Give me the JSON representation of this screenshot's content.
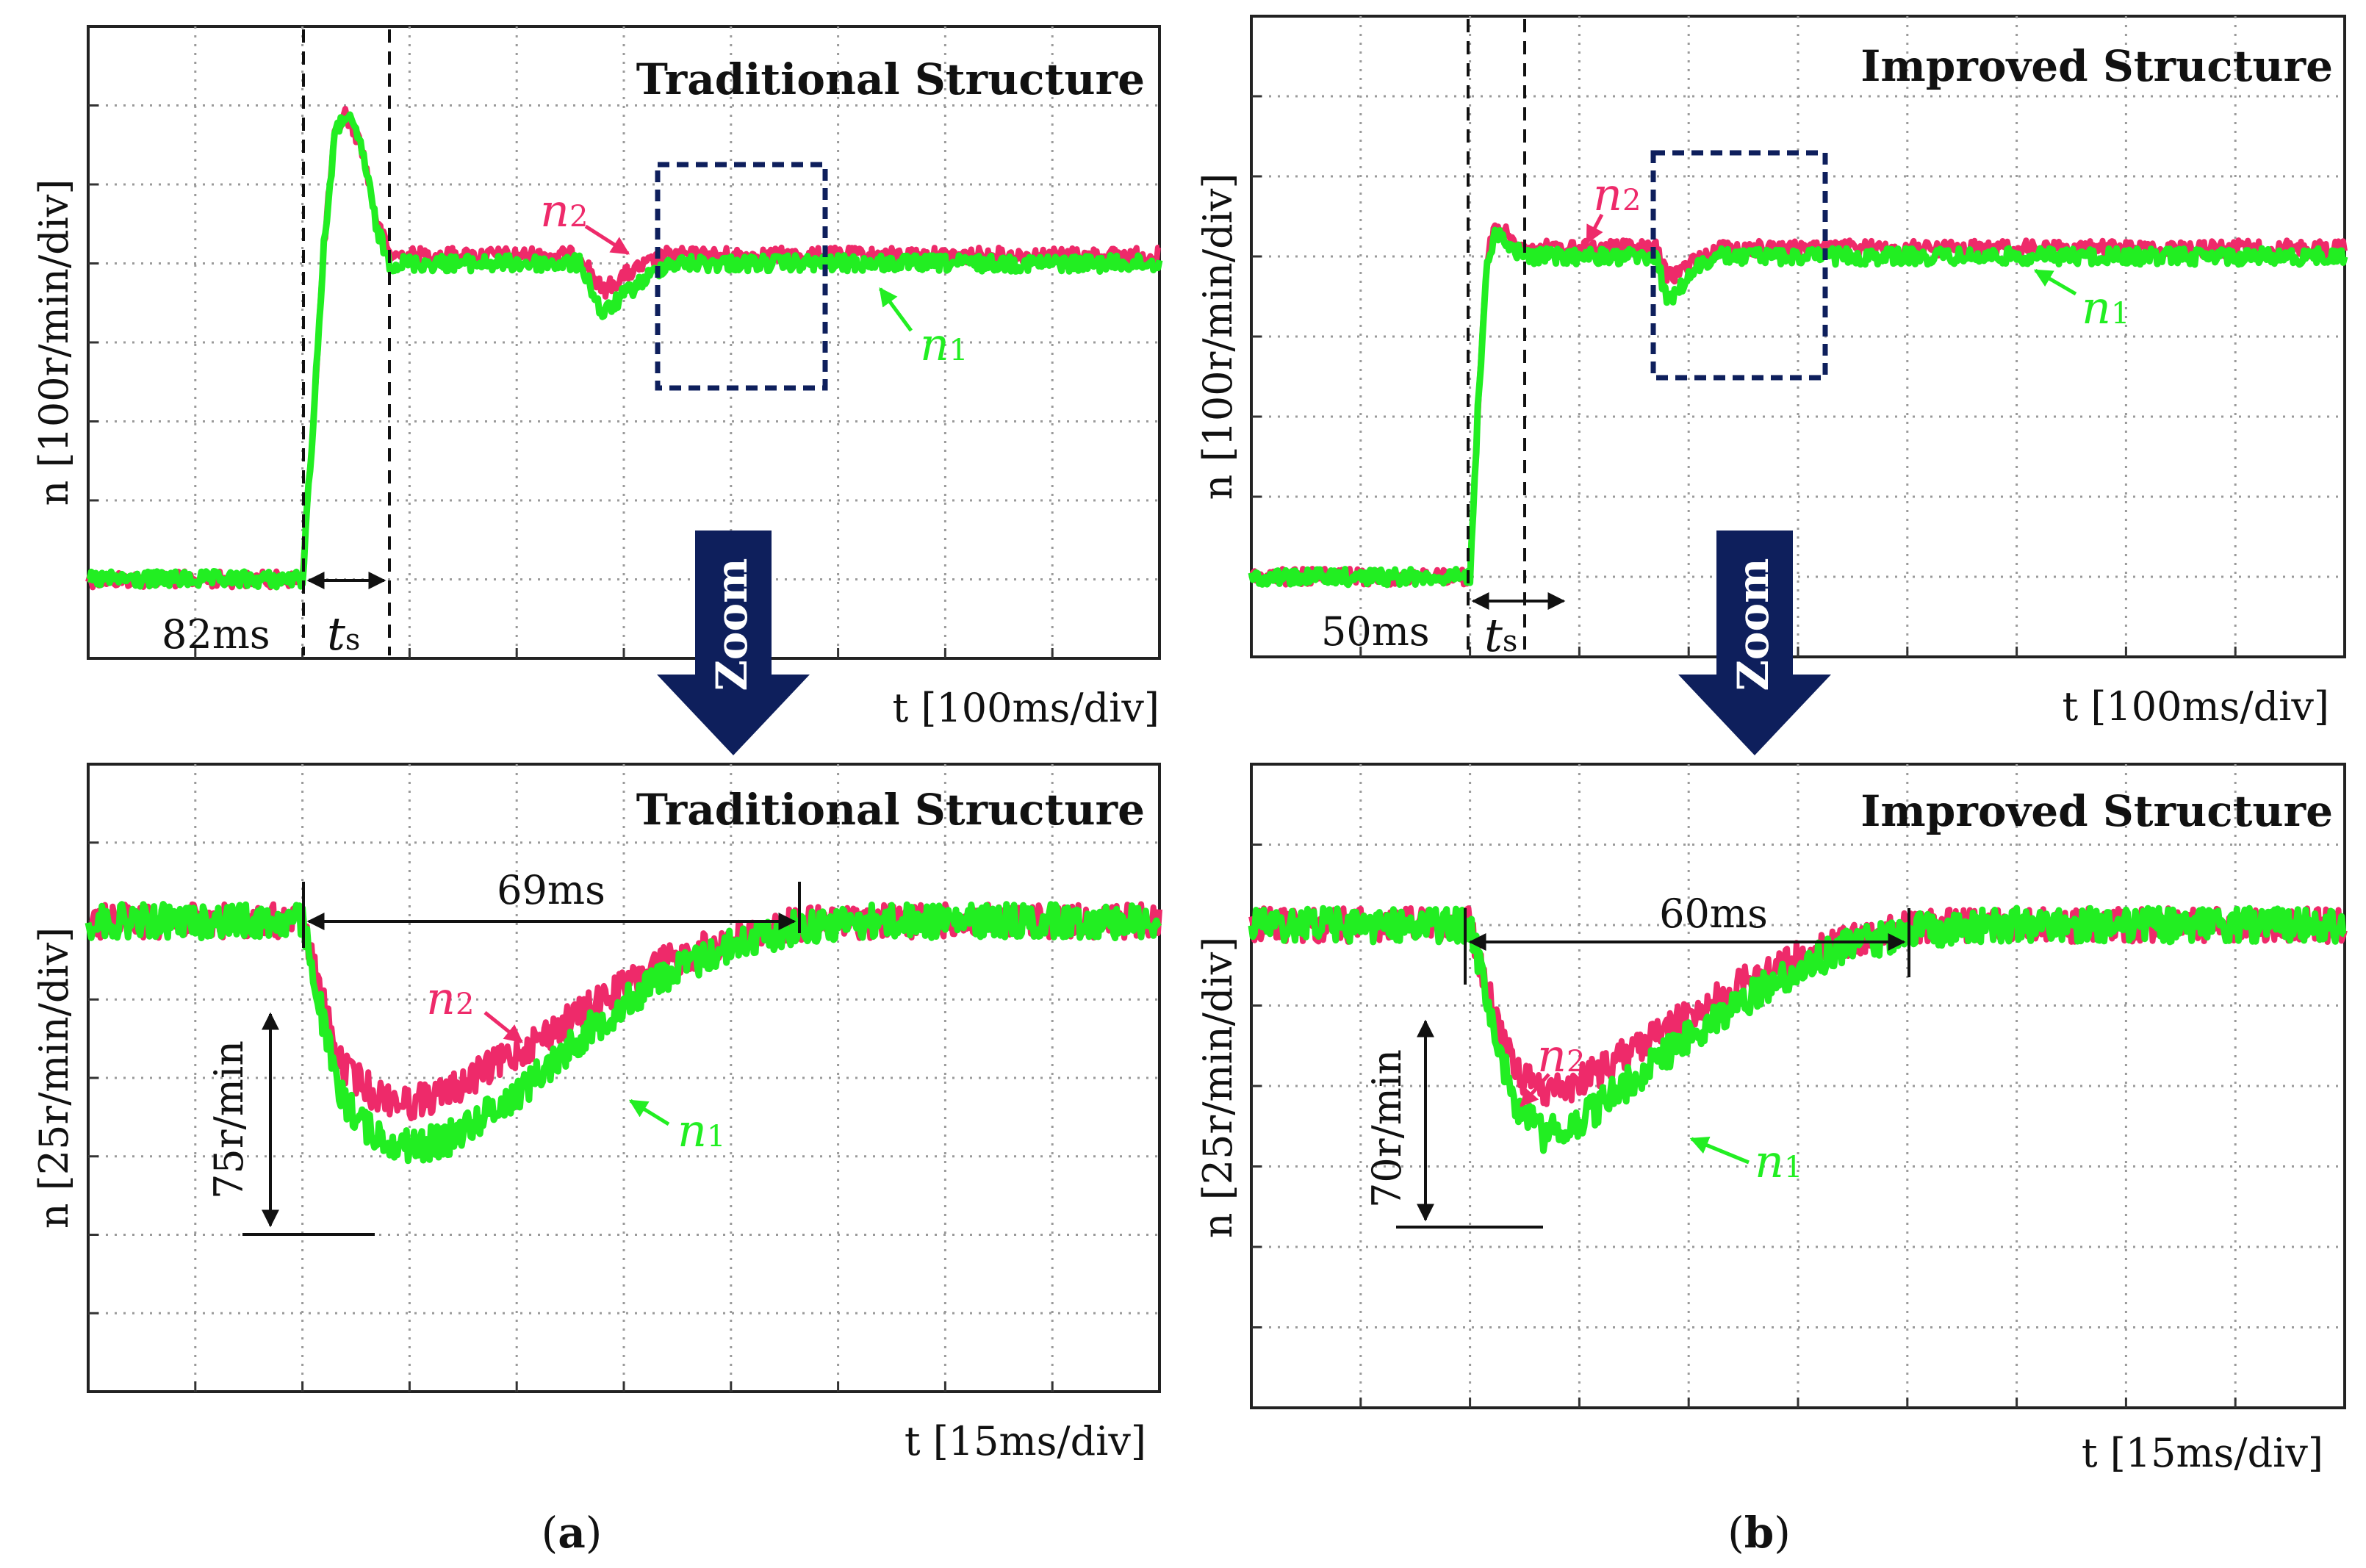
{
  "figure": {
    "zoom_label": "Zoom",
    "colors": {
      "n1": "#22ee22",
      "n2": "#ee2a6a",
      "zoom_arrow": "#0e1f5c",
      "zoom_box": "#0e1f5c"
    }
  },
  "chart_data": [
    {
      "id": "a_top",
      "type": "line",
      "title": "Traditional Structure",
      "ylabel": "n [100r/min/div]",
      "xlabel": "t [100ms/div]",
      "x_unit": "ms",
      "y_unit": "r/min",
      "xlim": [
        -200,
        800
      ],
      "ylim": [
        -100,
        700
      ],
      "series": [
        {
          "name": "n1",
          "x": [
            -200,
            -2,
            0,
            10,
            20,
            30,
            40,
            55,
            70,
            82,
            120,
            180,
            260,
            280,
            300,
            340,
            400,
            800
          ],
          "y": [
            0,
            0,
            0,
            200,
            420,
            560,
            590,
            550,
            440,
            400,
            400,
            400,
            400,
            335,
            360,
            400,
            400,
            400
          ]
        },
        {
          "name": "n2",
          "x": [
            -200,
            -2,
            0,
            10,
            20,
            30,
            40,
            55,
            70,
            82,
            120,
            180,
            260,
            280,
            300,
            340,
            400,
            800
          ],
          "y": [
            0,
            0,
            0,
            200,
            420,
            560,
            590,
            550,
            450,
            410,
            410,
            410,
            410,
            365,
            385,
            410,
            410,
            410
          ]
        }
      ],
      "annotations": {
        "delay": "82ms",
        "settling_label": "t",
        "settling_sub": "s",
        "n1_label": "n",
        "n1_sub": "1",
        "n2_label": "n",
        "n2_sub": "2"
      }
    },
    {
      "id": "a_bottom",
      "type": "line",
      "title": "Traditional Structure",
      "ylabel": "n [25r/min/div]",
      "xlabel": "t [15ms/div]",
      "x_unit": "ms",
      "y_unit": "r/min",
      "xlim": [
        -30,
        120
      ],
      "ylim": [
        -150,
        50
      ],
      "series": [
        {
          "name": "n1",
          "x": [
            -30,
            0,
            5,
            10,
            15,
            20,
            30,
            40,
            50,
            60,
            69,
            80,
            120
          ],
          "y": [
            0,
            0,
            -55,
            -68,
            -72,
            -70,
            -55,
            -35,
            -18,
            -8,
            -2,
            0,
            0
          ]
        },
        {
          "name": "n2",
          "x": [
            -30,
            0,
            5,
            10,
            15,
            20,
            30,
            40,
            50,
            60,
            69,
            80,
            120
          ],
          "y": [
            0,
            0,
            -45,
            -55,
            -58,
            -55,
            -42,
            -28,
            -14,
            -6,
            -1,
            0,
            0
          ]
        }
      ],
      "annotations": {
        "duration": "69ms",
        "depth": "75r/min",
        "n1_label": "n",
        "n1_sub": "1",
        "n2_label": "n",
        "n2_sub": "2"
      }
    },
    {
      "id": "b_top",
      "type": "line",
      "title": "Improved Structure",
      "ylabel": "n [100r/min/div]",
      "xlabel": "t [100ms/div]",
      "x_unit": "ms",
      "y_unit": "r/min",
      "xlim": [
        -200,
        800
      ],
      "ylim": [
        -100,
        700
      ],
      "series": [
        {
          "name": "n1",
          "x": [
            -200,
            -2,
            0,
            8,
            16,
            24,
            35,
            50,
            80,
            170,
            180,
            190,
            205,
            230,
            800
          ],
          "y": [
            0,
            0,
            0,
            230,
            400,
            430,
            415,
            400,
            400,
            400,
            345,
            355,
            385,
            400,
            400
          ]
        },
        {
          "name": "n2",
          "x": [
            -200,
            -2,
            0,
            8,
            16,
            24,
            35,
            50,
            80,
            170,
            180,
            190,
            205,
            230,
            800
          ],
          "y": [
            0,
            0,
            0,
            230,
            400,
            440,
            425,
            410,
            410,
            410,
            375,
            380,
            395,
            410,
            410
          ]
        }
      ],
      "annotations": {
        "delay": "50ms",
        "settling_label": "t",
        "settling_sub": "s",
        "n1_label": "n",
        "n1_sub": "1",
        "n2_label": "n",
        "n2_sub": "2"
      }
    },
    {
      "id": "b_bottom",
      "type": "line",
      "title": "Improved Structure",
      "ylabel": "n [25r/min/div]",
      "xlabel": "t [15ms/div]",
      "x_unit": "ms",
      "y_unit": "r/min",
      "xlim": [
        -30,
        120
      ],
      "ylim": [
        -150,
        50
      ],
      "series": [
        {
          "name": "n1",
          "x": [
            -30,
            0,
            3,
            6,
            10,
            14,
            20,
            30,
            40,
            50,
            60,
            70,
            120
          ],
          "y": [
            0,
            0,
            -30,
            -55,
            -65,
            -63,
            -52,
            -35,
            -20,
            -8,
            -2,
            0,
            0
          ]
        },
        {
          "name": "n2",
          "x": [
            -30,
            0,
            3,
            6,
            10,
            14,
            20,
            30,
            40,
            50,
            60,
            70,
            120
          ],
          "y": [
            0,
            0,
            -25,
            -45,
            -52,
            -50,
            -42,
            -28,
            -15,
            -6,
            -1,
            0,
            0
          ]
        }
      ],
      "annotations": {
        "duration": "60ms",
        "depth": "70r/min",
        "n1_label": "n",
        "n1_sub": "1",
        "n2_label": "n",
        "n2_sub": "2"
      }
    }
  ],
  "captions": {
    "a": {
      "open": "(",
      "letter": "a",
      "close": ")"
    },
    "b": {
      "open": "(",
      "letter": "b",
      "close": ")"
    }
  }
}
